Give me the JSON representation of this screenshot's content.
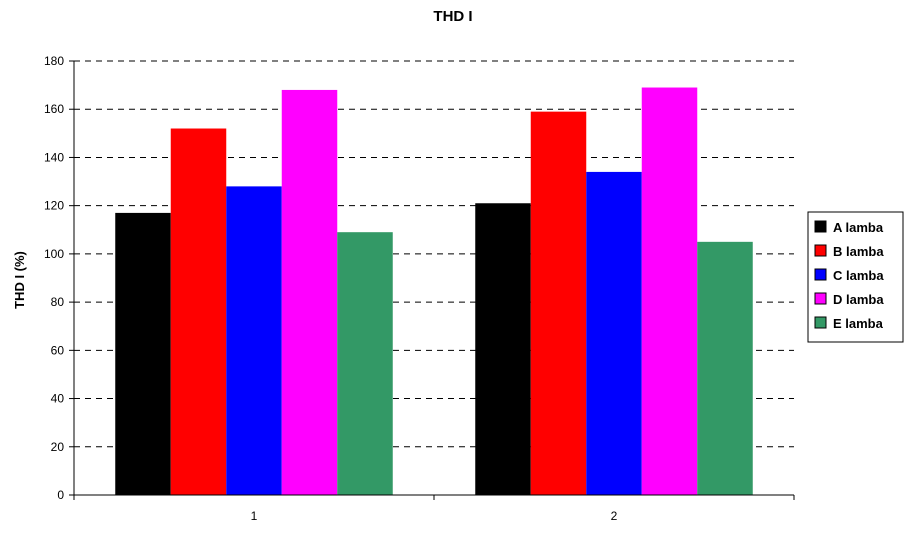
{
  "chart_data": {
    "type": "bar",
    "title": "THD I",
    "xlabel": "",
    "ylabel": "THD I (%)",
    "categories": [
      "1",
      "2"
    ],
    "ylim": [
      0,
      180
    ],
    "yticks": [
      "0",
      "20",
      "40",
      "60",
      "80",
      "100",
      "120",
      "140",
      "160",
      "180"
    ],
    "grid": true,
    "legend_position": "right",
    "series": [
      {
        "name": "A lamba",
        "color": "#000000",
        "values": [
          117,
          121
        ]
      },
      {
        "name": "B lamba",
        "color": "#ff0000",
        "values": [
          152,
          159
        ]
      },
      {
        "name": "C lamba",
        "color": "#0000ff",
        "values": [
          128,
          134
        ]
      },
      {
        "name": "D lamba",
        "color": "#ff00ff",
        "values": [
          168,
          169
        ]
      },
      {
        "name": "E lamba",
        "color": "#339966",
        "values": [
          109,
          105
        ]
      }
    ]
  }
}
